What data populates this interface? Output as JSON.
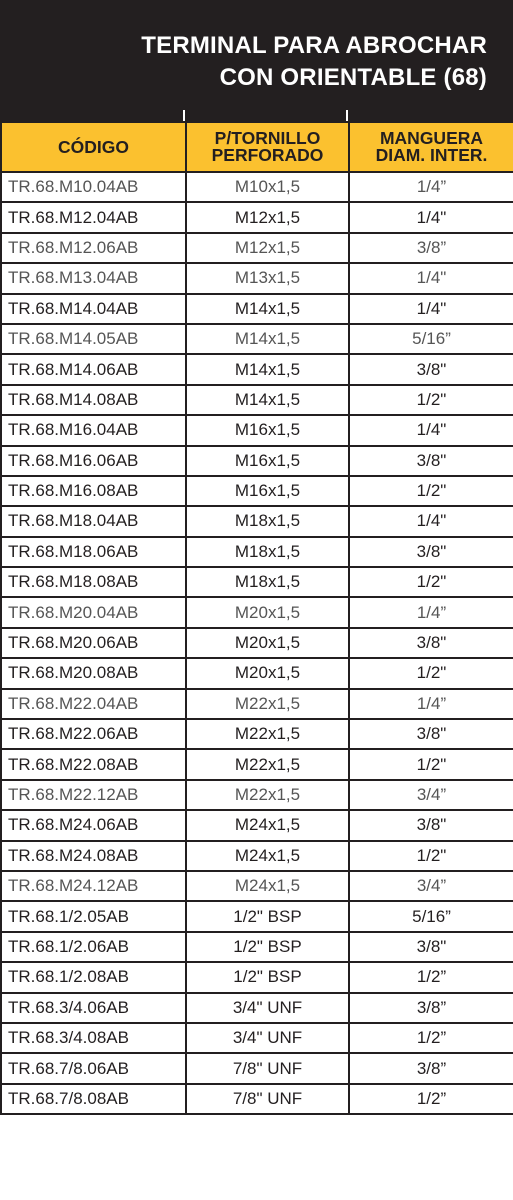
{
  "title": {
    "line1": "TERMINAL PARA ABROCHAR",
    "line2": "CON ORIENTABLE (68)"
  },
  "colors": {
    "header_bg": "#231f20",
    "column_header_bg": "#fbc12f",
    "text": "#231f20"
  },
  "columns": {
    "code": "CÓDIGO",
    "screw_line1": "P/TORNILLO",
    "screw_line2": "PERFORADO",
    "hose_line1": "MANGUERA",
    "hose_line2": "DIAM. INTER."
  },
  "rows": [
    {
      "code": "TR.68.M10.04AB",
      "screw": "M10x1,5",
      "hose": "1/4”"
    },
    {
      "code": "TR.68.M12.04AB",
      "screw": "M12x1,5",
      "hose": "1/4\""
    },
    {
      "code": "TR.68.M12.06AB",
      "screw": "M12x1,5",
      "hose": "3/8”"
    },
    {
      "code": "TR.68.M13.04AB",
      "screw": "M13x1,5",
      "hose": "1/4\""
    },
    {
      "code": "TR.68.M14.04AB",
      "screw": "M14x1,5",
      "hose": "1/4\""
    },
    {
      "code": "TR.68.M14.05AB",
      "screw": "M14x1,5",
      "hose": "5/16”"
    },
    {
      "code": "TR.68.M14.06AB",
      "screw": "M14x1,5",
      "hose": "3/8\""
    },
    {
      "code": "TR.68.M14.08AB",
      "screw": "M14x1,5",
      "hose": "1/2\""
    },
    {
      "code": "TR.68.M16.04AB",
      "screw": "M16x1,5",
      "hose": "1/4\""
    },
    {
      "code": "TR.68.M16.06AB",
      "screw": "M16x1,5",
      "hose": "3/8\""
    },
    {
      "code": "TR.68.M16.08AB",
      "screw": "M16x1,5",
      "hose": "1/2\""
    },
    {
      "code": "TR.68.M18.04AB",
      "screw": "M18x1,5",
      "hose": "1/4\""
    },
    {
      "code": "TR.68.M18.06AB",
      "screw": "M18x1,5",
      "hose": "3/8\""
    },
    {
      "code": "TR.68.M18.08AB",
      "screw": "M18x1,5",
      "hose": "1/2\""
    },
    {
      "code": "TR.68.M20.04AB",
      "screw": "M20x1,5",
      "hose": "1/4”"
    },
    {
      "code": "TR.68.M20.06AB",
      "screw": "M20x1,5",
      "hose": "3/8\""
    },
    {
      "code": "TR.68.M20.08AB",
      "screw": "M20x1,5",
      "hose": "1/2\""
    },
    {
      "code": "TR.68.M22.04AB",
      "screw": "M22x1,5",
      "hose": "1/4”"
    },
    {
      "code": "TR.68.M22.06AB",
      "screw": "M22x1,5",
      "hose": "3/8\""
    },
    {
      "code": "TR.68.M22.08AB",
      "screw": "M22x1,5",
      "hose": "1/2\""
    },
    {
      "code": "TR.68.M22.12AB",
      "screw": "M22x1,5",
      "hose": "3/4”"
    },
    {
      "code": "TR.68.M24.06AB",
      "screw": "M24x1,5",
      "hose": "3/8\""
    },
    {
      "code": "TR.68.M24.08AB",
      "screw": "M24x1,5",
      "hose": "1/2\""
    },
    {
      "code": "TR.68.M24.12AB",
      "screw": "M24x1,5",
      "hose": "3/4”"
    },
    {
      "code": "TR.68.1/2.05AB",
      "screw": "1/2\" BSP",
      "hose": "5/16”"
    },
    {
      "code": "TR.68.1/2.06AB",
      "screw": "1/2\" BSP",
      "hose": "3/8\""
    },
    {
      "code": "TR.68.1/2.08AB",
      "screw": "1/2\" BSP",
      "hose": "1/2”"
    },
    {
      "code": "TR.68.3/4.06AB",
      "screw": "3/4\" UNF",
      "hose": "3/8”"
    },
    {
      "code": "TR.68.3/4.08AB",
      "screw": "3/4\" UNF",
      "hose": "1/2”"
    },
    {
      "code": "TR.68.7/8.06AB",
      "screw": "7/8\" UNF",
      "hose": "3/8”"
    },
    {
      "code": "TR.68.7/8.08AB",
      "screw": "7/8\" UNF",
      "hose": "1/2”"
    }
  ]
}
